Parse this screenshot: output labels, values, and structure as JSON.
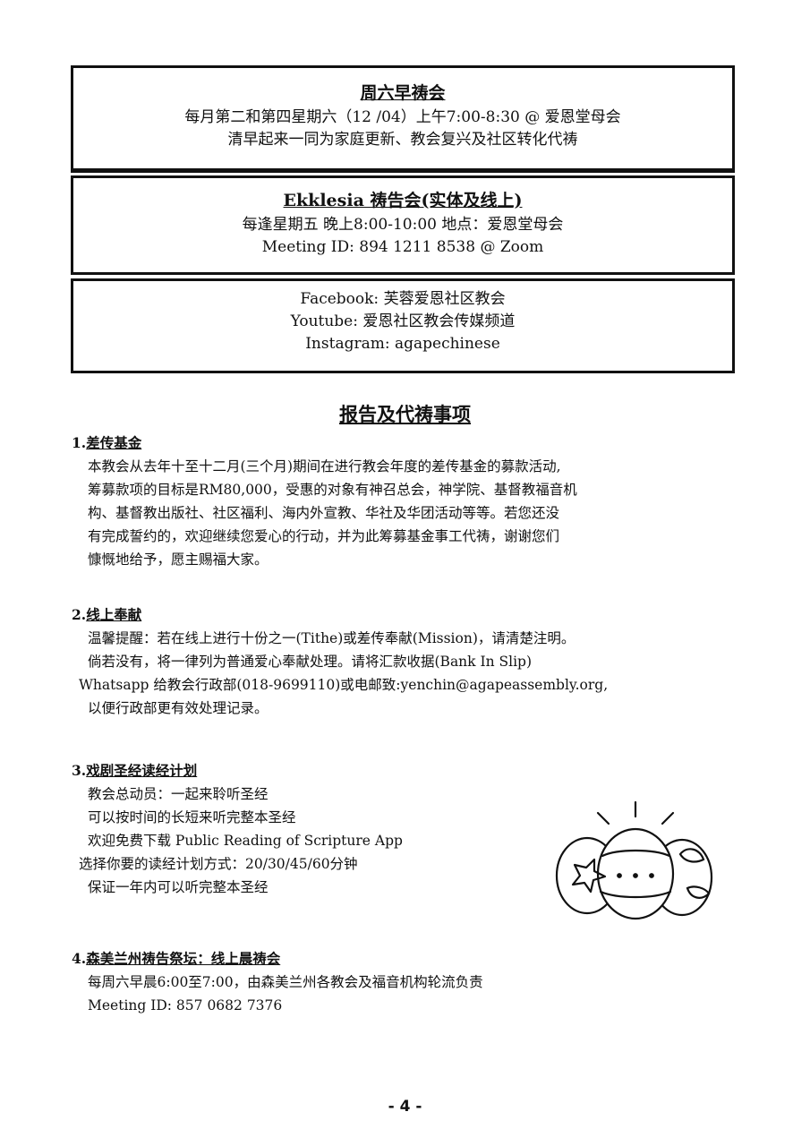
{
  "box_prayer_saturday": {
    "title": "周六早祷会",
    "line1": "每月第二和第四星期六（12 /04）上午7:00-8:30 @ 爱恩堂母会",
    "line2": "清早起来一同为家庭更新、教会复兴及社区转化代祷"
  },
  "box_ekklesia": {
    "title": "Ekklesia 祷告会(实体及线上)",
    "line1": "每逢星期五 晚上8:00-10:00 地点：爱恩堂母会",
    "line2": "Meeting ID: 894 1211 8538  @ Zoom"
  },
  "box_social": {
    "line1": "Facebook: 芙蓉爱恩社区教会",
    "line2": "Youtube: 爱恩社区教会传媒频道",
    "line3": "Instagram: agapechinese"
  },
  "section_heading": "报告及代祷事项",
  "items": [
    {
      "number": "1.",
      "title": "差传基金",
      "lines": [
        "本教会从去年十至十二月(三个月)期间在进行教会年度的差传基金的募款活动,",
        "筹募款项的目标是RM80,000，受惠的对象有神召总会，神学院、基督教福音机",
        "构、基督教出版社、社区福利、海内外宣教、华社及华团活动等等。若您还没",
        "有完成誓约的，欢迎继续您爱心的行动，并为此筹募基金事工代祷，谢谢您们",
        "慷慨地给予，愿主赐福大家。"
      ]
    },
    {
      "number": "2.",
      "title": "线上奉献",
      "lines": [
        "温馨提醒：若在线上进行十份之一(Tithe)或差传奉献(Mission)，请清楚注明。",
        "倘若没有，将一律列为普通爱心奉献处理。请将汇款收据(Bank In Slip)",
        "Whatsapp 给教会行政部(018-9699110)或电邮致:yenchin@agapeassembly.org,",
        "以便行政部更有效处理记录。"
      ]
    },
    {
      "number": "3.",
      "title": "戏剧圣经读经计划",
      "lines": [
        "教会总动员：一起来聆听圣经",
        "可以按时间的长短来听完整本圣经",
        "欢迎免费下载  Public Reading of Scripture App",
        "选择你要的读经计划方式：20/30/45/60分钟",
        "保证一年内可以听完整本圣经"
      ]
    },
    {
      "number": "4.",
      "title": "森美兰州祷告祭坛：线上晨祷会",
      "lines": [
        "每周六早晨6:00至7:00，由森美兰州各教会及福音机构轮流负责",
        "Meeting ID: 857 0682 7376"
      ]
    }
  ],
  "decoration": {
    "icon": "easter-eggs-icon"
  },
  "page_number": "- 4 -"
}
